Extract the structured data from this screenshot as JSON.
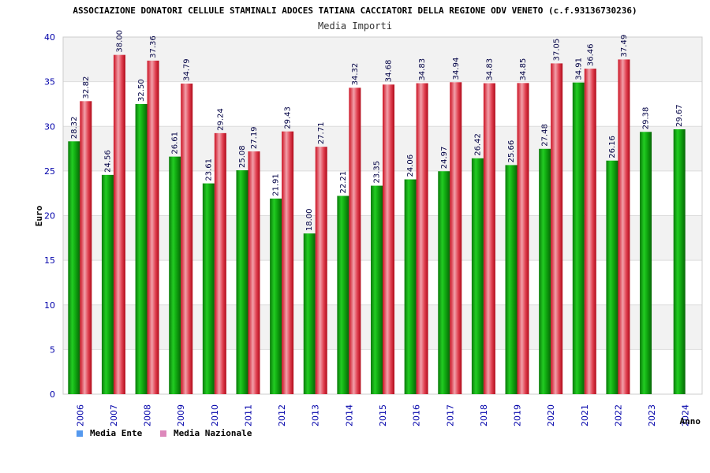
{
  "chart_data": {
    "type": "bar",
    "title": "ASSOCIAZIONE DONATORI CELLULE STAMINALI ADOCES TATIANA CACCIATORI DELLA REGIONE ODV VENETO (c.f.93136730236)",
    "subtitle": "Media Importi",
    "xlabel": "Anno",
    "ylabel": "Euro",
    "ylim": [
      0,
      40
    ],
    "yticks": [
      0,
      5,
      10,
      15,
      20,
      25,
      30,
      35,
      40
    ],
    "grid": true,
    "legend_position": "bottom-left",
    "categories": [
      "2006",
      "2007",
      "2008",
      "2009",
      "2010",
      "2011",
      "2012",
      "2013",
      "2014",
      "2015",
      "2016",
      "2017",
      "2018",
      "2019",
      "2020",
      "2021",
      "2022",
      "2023",
      "2024"
    ],
    "series": [
      {
        "name": "Media Ente",
        "legend_color": "#5599ee",
        "bar_color": "#11aa11",
        "values": [
          28.32,
          24.56,
          32.5,
          26.61,
          23.61,
          25.08,
          21.91,
          18.0,
          22.21,
          23.35,
          24.06,
          24.97,
          26.42,
          25.66,
          27.48,
          34.91,
          26.16,
          29.38,
          29.67
        ],
        "labels": [
          "28.32",
          "24.56",
          "32.50",
          "26.61",
          "23.61",
          "25.08",
          "21.91",
          "18.00",
          "22.21",
          "23.35",
          "24.06",
          "24.97",
          "26.42",
          "25.66",
          "27.48",
          "34.91",
          "26.16",
          "29.38",
          "29.67"
        ]
      },
      {
        "name": "Media Nazionale",
        "legend_color": "#dd88bb",
        "bar_color": "#dd2233",
        "values": [
          32.82,
          38.0,
          37.36,
          34.79,
          29.24,
          27.19,
          29.43,
          27.71,
          34.32,
          34.68,
          34.83,
          34.94,
          34.83,
          34.85,
          37.05,
          36.46,
          37.49,
          null,
          null
        ],
        "labels": [
          "32.82",
          "38.00",
          "37.36",
          "34.79",
          "29.24",
          "27.19",
          "29.43",
          "27.71",
          "34.32",
          "34.68",
          "34.83",
          "34.94",
          "34.83",
          "34.85",
          "37.05",
          "36.46",
          "37.49",
          "",
          ""
        ]
      }
    ],
    "colors": {
      "band_a": "#f2f2f2",
      "band_b": "#ffffff",
      "gridline": "#dddddd",
      "frame": "#cccccc",
      "tick_text": "#0000aa"
    }
  }
}
